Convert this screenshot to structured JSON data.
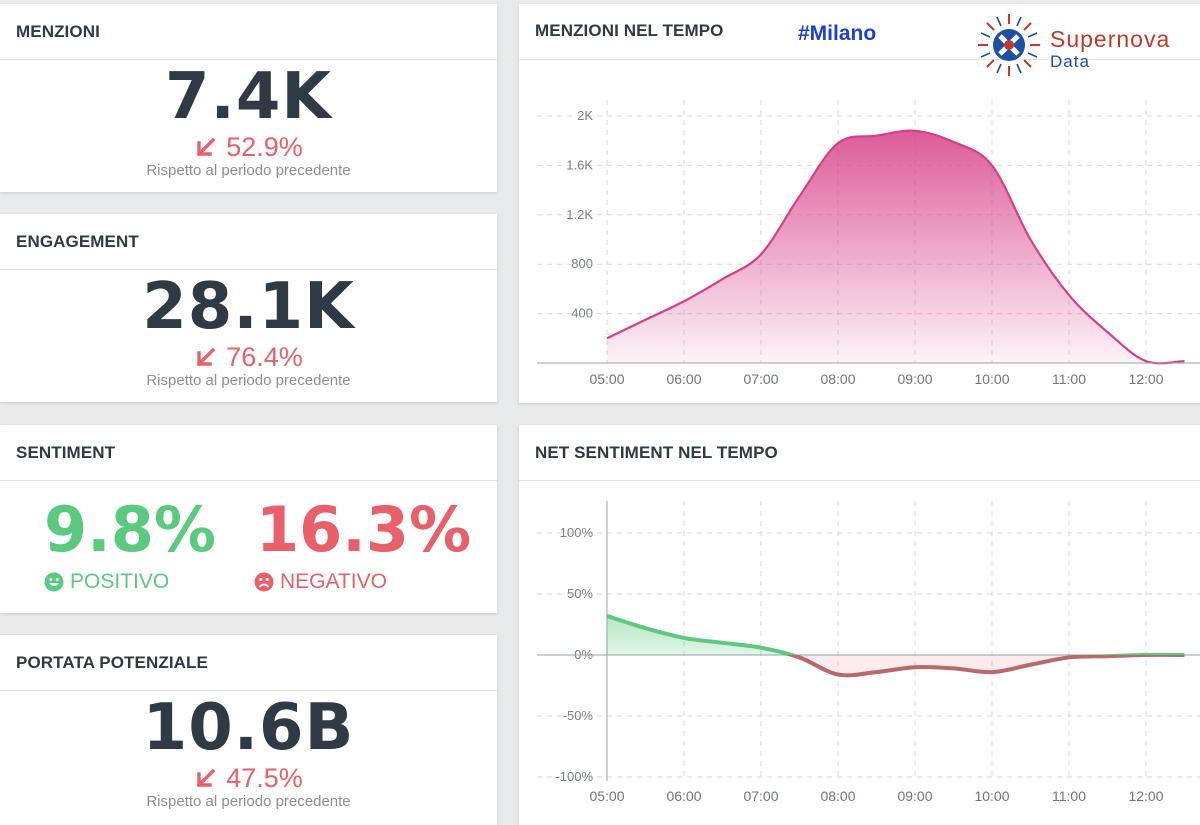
{
  "menzioni": {
    "title": "MENZIONI",
    "value": "7.4K",
    "delta": "52.9%",
    "note": "Rispetto al periodo precedente"
  },
  "engagement": {
    "title": "ENGAGEMENT",
    "value": "28.1K",
    "delta": "76.4%",
    "note": "Rispetto al periodo precedente"
  },
  "sentiment": {
    "title": "SENTIMENT",
    "positive_value": "9.8%",
    "positive_label": "POSITIVO",
    "negative_value": "16.3%",
    "negative_label": "NEGATIVO"
  },
  "portata": {
    "title": "PORTATA POTENZIALE",
    "value": "10.6B",
    "delta": "47.5%",
    "note": "Rispetto al periodo precedente"
  },
  "menzioni_tempo": {
    "title": "MENZIONI NEL TEMPO",
    "hashtag": "#Milano"
  },
  "logo": {
    "name": "Supernova",
    "sub": "Data"
  },
  "net_sentiment": {
    "title": "NET SENTIMENT NEL TEMPO"
  },
  "colors": {
    "pink": "#d63f86",
    "positive": "#5bc97e",
    "negative": "#e8606a",
    "negative_line": "#b86a6a",
    "text": "#2f3a45"
  },
  "chart_data": [
    {
      "type": "area",
      "title": "MENZIONI NEL TEMPO",
      "x": [
        "05:00",
        "05:30",
        "06:00",
        "06:30",
        "07:00",
        "07:30",
        "08:00",
        "08:30",
        "09:00",
        "09:30",
        "10:00",
        "10:30",
        "11:00",
        "11:30",
        "12:00",
        "12:30"
      ],
      "xticks": [
        "05:00",
        "06:00",
        "07:00",
        "08:00",
        "09:00",
        "10:00",
        "11:00",
        "12:00"
      ],
      "values": [
        200,
        350,
        500,
        680,
        880,
        1350,
        1780,
        1840,
        1880,
        1790,
        1600,
        1000,
        550,
        250,
        15,
        15
      ],
      "yticks": [
        {
          "v": 400,
          "label": "400"
        },
        {
          "v": 800,
          "label": "800"
        },
        {
          "v": 1200,
          "label": "1.2K"
        },
        {
          "v": 1600,
          "label": "1.6K"
        },
        {
          "v": 2000,
          "label": "2K"
        }
      ],
      "ylim": [
        0,
        2100
      ],
      "grid": true
    },
    {
      "type": "line",
      "title": "NET SENTIMENT NEL TEMPO",
      "x": [
        "05:00",
        "05:30",
        "06:00",
        "06:30",
        "07:00",
        "07:30",
        "08:00",
        "08:30",
        "09:00",
        "09:30",
        "10:00",
        "10:30",
        "11:00",
        "11:30",
        "12:00",
        "12:30"
      ],
      "xticks": [
        "05:00",
        "06:00",
        "07:00",
        "08:00",
        "09:00",
        "10:00",
        "11:00",
        "12:00"
      ],
      "values": [
        32,
        22,
        14,
        10,
        6,
        -2,
        -16,
        -14,
        -10,
        -11,
        -14,
        -8,
        -2,
        -1,
        0,
        0
      ],
      "yticks": [
        {
          "v": 100,
          "label": "100%"
        },
        {
          "v": 50,
          "label": "50%"
        },
        {
          "v": 0,
          "label": "0%"
        },
        {
          "v": -50,
          "label": "-50%"
        },
        {
          "v": -100,
          "label": "-100%"
        }
      ],
      "ylim": [
        -100,
        100
      ],
      "grid": true
    }
  ]
}
